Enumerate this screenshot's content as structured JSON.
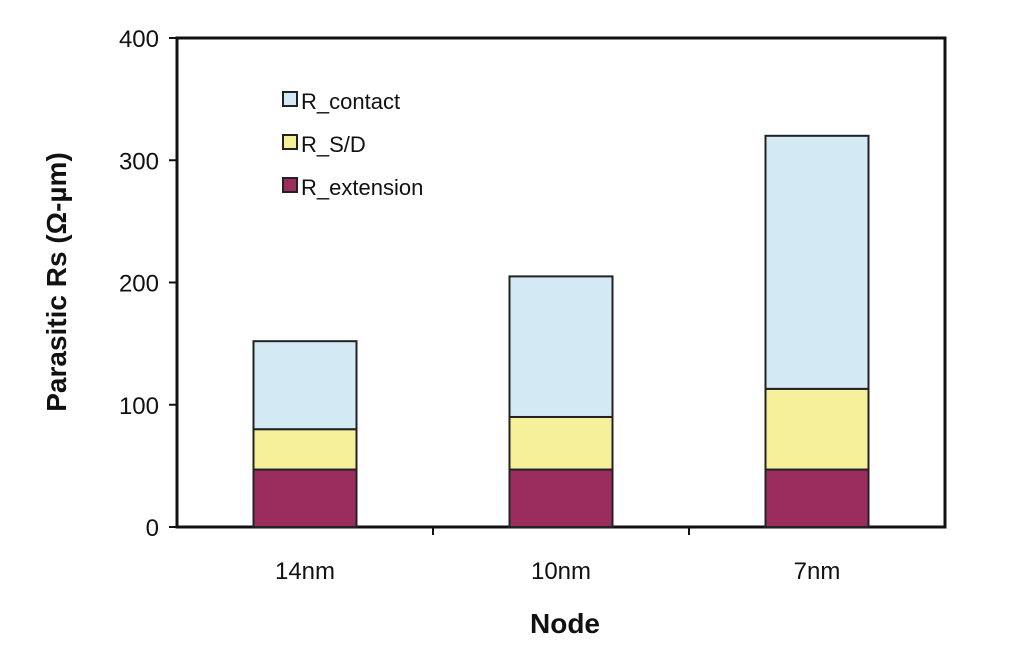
{
  "chart_data": {
    "type": "bar",
    "stacked": true,
    "categories": [
      "14nm",
      "10nm",
      "7nm"
    ],
    "series": [
      {
        "name": "R_extension",
        "values": [
          47,
          47,
          47
        ],
        "color": "#9b2d5e"
      },
      {
        "name": "R_S/D",
        "values": [
          33,
          43,
          66
        ],
        "color": "#f7f09a"
      },
      {
        "name": "R_contact",
        "values": [
          72,
          115,
          207
        ],
        "color": "#d3e9f3"
      }
    ],
    "xlabel": "Node",
    "ylabel": "Parasitic Rs (Ω-µm)",
    "ylim": [
      0,
      400
    ],
    "yticks": [
      0,
      100,
      200,
      300,
      400
    ],
    "grid": false,
    "legend": "top-left",
    "legend_order": [
      "R_contact",
      "R_S/D",
      "R_extension"
    ]
  }
}
